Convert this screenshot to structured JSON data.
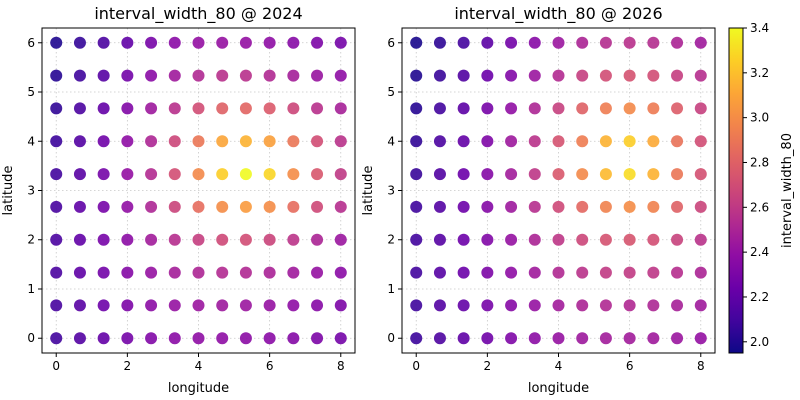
{
  "figure": {
    "colormap": "plasma"
  },
  "chart_data": [
    {
      "type": "scatter",
      "title": "interval_width_80 @ 2024",
      "xlabel": "longitude",
      "ylabel": "latitude",
      "xlim": [
        -0.4,
        8.4
      ],
      "ylim": [
        -0.3,
        6.3
      ],
      "xticks": [
        "0",
        "2",
        "4",
        "6",
        "8"
      ],
      "yticks": [
        "0",
        "1",
        "2",
        "3",
        "4",
        "5",
        "6"
      ],
      "grid": true,
      "x": [
        0,
        0.667,
        1.333,
        2,
        2.667,
        3.333,
        4,
        4.667,
        5.333,
        6,
        6.667,
        7.333,
        8
      ],
      "y": [
        0,
        0.667,
        1.333,
        2,
        2.667,
        3.333,
        4,
        4.667,
        5.333,
        6
      ],
      "value_field": "interval_width_80",
      "values": [
        [
          2.1,
          2.16,
          2.22,
          2.28,
          2.33,
          2.36,
          2.38,
          2.38,
          2.37,
          2.36,
          2.34,
          2.31,
          2.28
        ],
        [
          2.12,
          2.18,
          2.25,
          2.31,
          2.37,
          2.41,
          2.43,
          2.44,
          2.43,
          2.41,
          2.38,
          2.35,
          2.31
        ],
        [
          2.13,
          2.2,
          2.27,
          2.34,
          2.41,
          2.47,
          2.51,
          2.53,
          2.52,
          2.49,
          2.45,
          2.41,
          2.36
        ],
        [
          2.13,
          2.21,
          2.29,
          2.37,
          2.46,
          2.55,
          2.63,
          2.68,
          2.7,
          2.66,
          2.58,
          2.5,
          2.43
        ],
        [
          2.12,
          2.2,
          2.29,
          2.39,
          2.51,
          2.66,
          2.85,
          3.0,
          3.06,
          3.0,
          2.85,
          2.68,
          2.55
        ],
        [
          2.1,
          2.18,
          2.28,
          2.4,
          2.53,
          2.71,
          2.98,
          3.25,
          3.4,
          3.28,
          3.0,
          2.75,
          2.6
        ],
        [
          2.08,
          2.16,
          2.26,
          2.38,
          2.51,
          2.67,
          2.9,
          3.1,
          3.15,
          3.08,
          2.9,
          2.7,
          2.57
        ],
        [
          2.05,
          2.13,
          2.22,
          2.33,
          2.44,
          2.56,
          2.7,
          2.8,
          2.82,
          2.77,
          2.67,
          2.56,
          2.48
        ],
        [
          2.02,
          2.09,
          2.17,
          2.27,
          2.36,
          2.45,
          2.52,
          2.56,
          2.56,
          2.52,
          2.47,
          2.42,
          2.38
        ],
        [
          2.0,
          2.06,
          2.13,
          2.21,
          2.29,
          2.36,
          2.4,
          2.41,
          2.4,
          2.38,
          2.35,
          2.31,
          2.28
        ]
      ]
    },
    {
      "type": "scatter",
      "title": "interval_width_80 @ 2026",
      "xlabel": "longitude",
      "ylabel": "latitude",
      "xlim": [
        -0.4,
        8.4
      ],
      "ylim": [
        -0.3,
        6.3
      ],
      "xticks": [
        "0",
        "2",
        "4",
        "6",
        "8"
      ],
      "yticks": [
        "0",
        "1",
        "2",
        "3",
        "4",
        "5",
        "6"
      ],
      "grid": true,
      "x": [
        0,
        0.667,
        1.333,
        2,
        2.667,
        3.333,
        4,
        4.667,
        5.333,
        6,
        6.667,
        7.333,
        8
      ],
      "y": [
        0,
        0.667,
        1.333,
        2,
        2.667,
        3.333,
        4,
        4.667,
        5.333,
        6
      ],
      "value_field": "interval_width_80",
      "values": [
        [
          2.08,
          2.14,
          2.2,
          2.26,
          2.32,
          2.37,
          2.41,
          2.44,
          2.46,
          2.46,
          2.45,
          2.43,
          2.4
        ],
        [
          2.09,
          2.16,
          2.22,
          2.29,
          2.35,
          2.41,
          2.46,
          2.5,
          2.52,
          2.52,
          2.51,
          2.48,
          2.45
        ],
        [
          2.1,
          2.17,
          2.24,
          2.31,
          2.38,
          2.45,
          2.52,
          2.57,
          2.61,
          2.61,
          2.59,
          2.55,
          2.5
        ],
        [
          2.1,
          2.17,
          2.25,
          2.33,
          2.41,
          2.5,
          2.59,
          2.67,
          2.73,
          2.74,
          2.71,
          2.65,
          2.57
        ],
        [
          2.09,
          2.16,
          2.25,
          2.34,
          2.44,
          2.55,
          2.68,
          2.83,
          2.95,
          3.0,
          2.95,
          2.8,
          2.66
        ],
        [
          2.07,
          2.15,
          2.24,
          2.34,
          2.46,
          2.59,
          2.76,
          2.98,
          3.18,
          3.3,
          3.15,
          2.9,
          2.72
        ],
        [
          2.05,
          2.13,
          2.22,
          2.32,
          2.44,
          2.57,
          2.73,
          2.93,
          3.15,
          3.25,
          3.12,
          2.88,
          2.7
        ],
        [
          2.02,
          2.1,
          2.19,
          2.29,
          2.39,
          2.51,
          2.64,
          2.8,
          2.93,
          2.98,
          2.92,
          2.78,
          2.64
        ],
        [
          2.0,
          2.07,
          2.15,
          2.24,
          2.33,
          2.43,
          2.53,
          2.63,
          2.7,
          2.73,
          2.7,
          2.63,
          2.55
        ],
        [
          1.98,
          2.04,
          2.11,
          2.19,
          2.27,
          2.35,
          2.43,
          2.5,
          2.54,
          2.56,
          2.54,
          2.5,
          2.45
        ]
      ]
    }
  ],
  "colorbar": {
    "label": "interval_width_80",
    "min": 1.95,
    "max": 3.4,
    "ticks": [
      "2.0",
      "2.2",
      "2.4",
      "2.6",
      "2.8",
      "3.0",
      "3.2",
      "3.4"
    ],
    "tick_values": [
      2.0,
      2.2,
      2.4,
      2.6,
      2.8,
      3.0,
      3.2,
      3.4
    ]
  }
}
